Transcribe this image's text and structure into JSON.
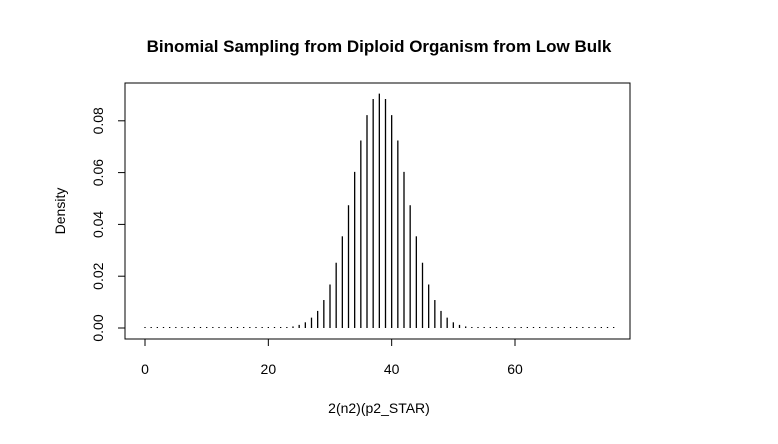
{
  "chart_data": {
    "type": "bar",
    "style": "spikes",
    "title": "Binomial Sampling from Diploid Organism from Low Bulk",
    "xlabel": "2(n2)(p2_STAR)",
    "ylabel": "Density",
    "xlim": [
      0,
      76
    ],
    "ylim": [
      0,
      0.09
    ],
    "x_ticks": [
      0,
      20,
      40,
      60
    ],
    "y_ticks": [
      0.0,
      0.02,
      0.04,
      0.06,
      0.08
    ],
    "y_tick_labels": [
      "0.00",
      "0.02",
      "0.04",
      "0.06",
      "0.08"
    ],
    "grid": false,
    "legend": "none",
    "x": [
      0,
      1,
      2,
      3,
      4,
      5,
      6,
      7,
      8,
      9,
      10,
      11,
      12,
      13,
      14,
      15,
      16,
      17,
      18,
      19,
      20,
      21,
      22,
      23,
      24,
      25,
      26,
      27,
      28,
      29,
      30,
      31,
      32,
      33,
      34,
      35,
      36,
      37,
      38,
      39,
      40,
      41,
      42,
      43,
      44,
      45,
      46,
      47,
      48,
      49,
      50,
      51,
      52,
      53,
      54,
      55,
      56,
      57,
      58,
      59,
      60,
      61,
      62,
      63,
      64,
      65,
      66,
      67,
      68,
      69,
      70,
      71,
      72,
      73,
      74,
      75,
      76
    ],
    "values": [
      0,
      0,
      0,
      0,
      0,
      0,
      0,
      0,
      0,
      0,
      0,
      0,
      0,
      0,
      0,
      0,
      0,
      0,
      0,
      0,
      0,
      0,
      0,
      0.0003,
      0.0006,
      0.0012,
      0.0022,
      0.004,
      0.0066,
      0.0108,
      0.0168,
      0.0252,
      0.0354,
      0.0474,
      0.0603,
      0.0724,
      0.0822,
      0.0884,
      0.0905,
      0.0884,
      0.0822,
      0.0724,
      0.0603,
      0.0474,
      0.0354,
      0.0252,
      0.0168,
      0.0108,
      0.0066,
      0.004,
      0.0022,
      0.0012,
      0.0006,
      0.0003,
      0,
      0,
      0,
      0,
      0,
      0,
      0,
      0,
      0,
      0,
      0,
      0,
      0,
      0,
      0,
      0,
      0,
      0,
      0,
      0,
      0,
      0,
      0
    ]
  }
}
